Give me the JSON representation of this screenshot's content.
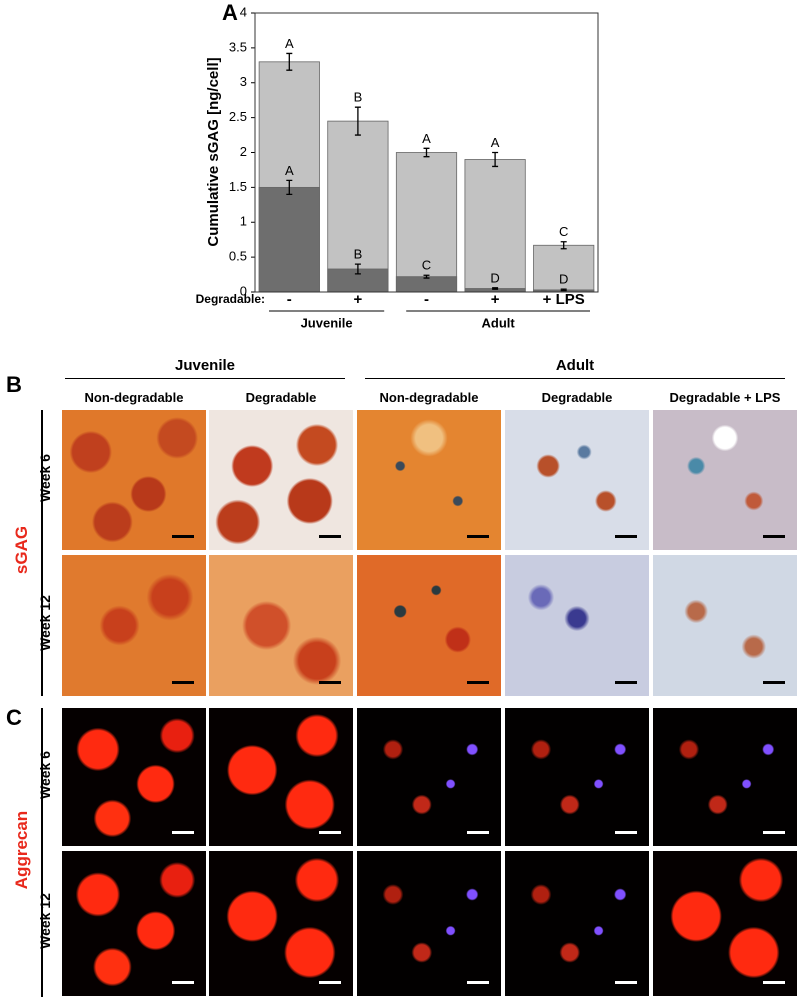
{
  "chart_data": {
    "type": "bar",
    "panel_label": "A",
    "ylabel": "Cumulative sGAG [ng/cell]",
    "x_prefix": "Degradable:",
    "categories": [
      "-",
      "+",
      "-",
      "+",
      "+ LPS"
    ],
    "groups": [
      "Juvenile",
      "Adult"
    ],
    "ylim": [
      0,
      4
    ],
    "yticks": [
      0,
      0.5,
      1,
      1.5,
      2,
      2.5,
      3,
      3.5,
      4
    ],
    "series": [
      {
        "color": "#c2c2c2",
        "values": [
          3.3,
          2.45,
          2.0,
          1.9,
          0.67
        ],
        "errors": [
          0.12,
          0.2,
          0.06,
          0.1,
          0.05
        ],
        "letters": [
          "A",
          "B",
          "A",
          "A",
          "C"
        ]
      },
      {
        "color": "#6e6e6e",
        "values": [
          1.5,
          0.33,
          0.22,
          0.05,
          0.03
        ],
        "errors": [
          0.1,
          0.07,
          0.02,
          0.01,
          0.01
        ],
        "letters": [
          "A",
          "B",
          "C",
          "D",
          "D"
        ]
      }
    ]
  },
  "panel_b": {
    "label": "B",
    "side_label": "sGAG",
    "groups": [
      "Juvenile",
      "Adult"
    ],
    "columns": [
      "Non-degradable",
      "Degradable",
      "Non-degradable",
      "Degradable",
      "Degradable + LPS"
    ],
    "rows": [
      "Week 6",
      "Week 12"
    ]
  },
  "panel_c": {
    "label": "C",
    "side_label": "Aggrecan",
    "rows": [
      "Week 6",
      "Week 12"
    ]
  }
}
